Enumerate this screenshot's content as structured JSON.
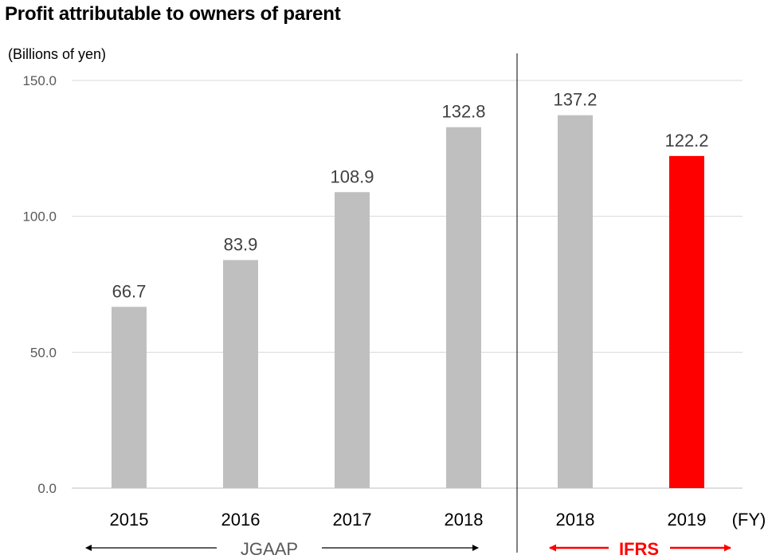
{
  "chart_data": {
    "type": "bar",
    "title": "Profit attributable to owners of parent",
    "ylabel": "(Billions of yen)",
    "xlabel": "(FY)",
    "ylim": [
      0,
      150
    ],
    "yticks": [
      "0.0",
      "50.0",
      "100.0",
      "150.0"
    ],
    "grid": true,
    "legend": "none",
    "categories": [
      "2015",
      "2016",
      "2017",
      "2018",
      "2018",
      "2019"
    ],
    "values": [
      66.7,
      83.9,
      108.9,
      132.8,
      137.2,
      122.2
    ],
    "data_labels": [
      "66.7",
      "83.9",
      "108.9",
      "132.8",
      "137.2",
      "122.2"
    ],
    "bar_colors": [
      "#bfbfbf",
      "#bfbfbf",
      "#bfbfbf",
      "#bfbfbf",
      "#bfbfbf",
      "#ff0000"
    ],
    "sections": [
      {
        "label": "JGAAP",
        "color": "#595959",
        "arrow_color": "#000000",
        "from_index": 0,
        "to_index": 3
      },
      {
        "label": "IFRS",
        "color": "#ff0000",
        "arrow_color": "#ff0000",
        "from_index": 4,
        "to_index": 5
      }
    ]
  }
}
